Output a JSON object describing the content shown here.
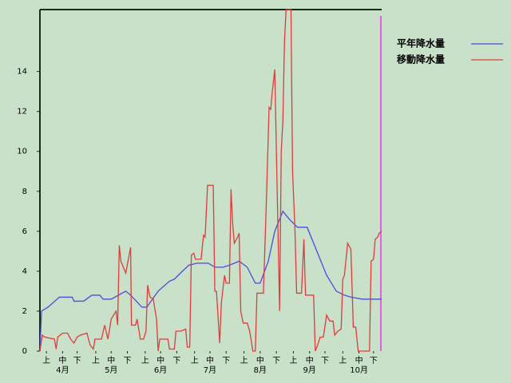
{
  "chart_data": {
    "type": "line",
    "xlim": [
      0,
      211
    ],
    "ylim": [
      0,
      17.1
    ],
    "yticks": [
      0,
      2,
      4,
      6,
      8,
      10,
      12,
      14
    ],
    "xticks": [
      {
        "value": 4,
        "label": "上"
      },
      {
        "value": 14,
        "label": "中"
      },
      {
        "value": 23,
        "label": "下"
      },
      {
        "value": 34.5,
        "label": "上"
      },
      {
        "value": 44,
        "label": "中"
      },
      {
        "value": 54,
        "label": "下"
      },
      {
        "value": 65,
        "label": "上"
      },
      {
        "value": 74.5,
        "label": "中"
      },
      {
        "value": 84.5,
        "label": "下"
      },
      {
        "value": 95.5,
        "label": "上"
      },
      {
        "value": 105,
        "label": "中"
      },
      {
        "value": 115,
        "label": "下"
      },
      {
        "value": 126,
        "label": "上"
      },
      {
        "value": 136,
        "label": "中"
      },
      {
        "value": 146,
        "label": "下"
      },
      {
        "value": 156.5,
        "label": "上"
      },
      {
        "value": 166.5,
        "label": "中"
      },
      {
        "value": 176,
        "label": "下"
      },
      {
        "value": 187,
        "label": "上"
      },
      {
        "value": 197,
        "label": "中"
      },
      {
        "value": 206,
        "label": "下"
      }
    ],
    "month_ticks": [
      {
        "value": 14,
        "label": "4月"
      },
      {
        "value": 44,
        "label": "5月"
      },
      {
        "value": 74.5,
        "label": "6月"
      },
      {
        "value": 105,
        "label": "7月"
      },
      {
        "value": 136,
        "label": "8月"
      },
      {
        "value": 166.5,
        "label": "9月"
      },
      {
        "value": 197,
        "label": "10月"
      }
    ],
    "grid": false,
    "series": [
      {
        "name": "平年降水量",
        "color": "#4b4bdc",
        "x": [
          0,
          1,
          5,
          12,
          20,
          21,
          27,
          32,
          37,
          39,
          44,
          53,
          56,
          63,
          66,
          73,
          80,
          83,
          88,
          92,
          97,
          104,
          108,
          113,
          117,
          123,
          128,
          133,
          136,
          141,
          145,
          150,
          154,
          159,
          165,
          171,
          177,
          183,
          188,
          192,
          199,
          211
        ],
        "values": [
          0,
          2.0,
          2.2,
          2.7,
          2.7,
          2.5,
          2.5,
          2.8,
          2.8,
          2.6,
          2.6,
          3.0,
          2.8,
          2.2,
          2.2,
          3.0,
          3.5,
          3.6,
          4.0,
          4.3,
          4.4,
          4.4,
          4.2,
          4.2,
          4.3,
          4.5,
          4.2,
          3.4,
          3.4,
          4.5,
          6.0,
          7.0,
          6.6,
          6.2,
          6.2,
          5.0,
          3.8,
          3.0,
          2.8,
          2.7,
          2.6,
          2.6
        ]
      },
      {
        "name": "移動降水量",
        "color": "#e03c3c",
        "x": [
          0,
          1.5,
          3,
          9,
          10,
          11,
          14,
          17,
          19,
          21,
          23,
          25,
          29,
          31,
          33,
          34,
          38,
          40,
          42,
          44,
          47,
          48,
          49,
          50,
          53,
          56,
          56.5,
          59,
          60,
          62,
          64,
          65.5,
          66.5,
          68,
          70,
          72,
          73,
          74,
          79,
          80,
          83,
          84,
          87,
          90,
          91,
          92.5,
          93.5,
          95,
          96,
          99.5,
          101,
          102,
          103.5,
          107,
          108,
          109,
          111,
          112,
          114,
          115,
          117,
          118,
          119,
          120,
          122,
          123,
          124,
          125.5,
          128,
          129.5,
          130.5,
          131.5,
          133,
          134,
          138,
          140,
          141.5,
          142.5,
          143.5,
          145,
          146.5,
          148,
          149,
          150,
          151,
          152,
          155,
          156,
          157.5,
          158.5,
          161.5,
          163,
          164,
          169,
          170,
          171.5,
          173,
          175,
          177,
          179,
          181,
          182,
          184,
          186,
          187,
          188,
          190,
          192,
          193.5,
          195,
          196.5,
          201,
          203.5,
          204.5,
          206,
          207,
          208.5,
          209.5,
          211
        ],
        "values": [
          0,
          0.8,
          0.7,
          0.6,
          0.1,
          0.7,
          0.9,
          0.9,
          0.6,
          0.4,
          0.7,
          0.8,
          0.9,
          0.3,
          0.1,
          0.6,
          0.6,
          1.3,
          0.6,
          1.6,
          2.0,
          1.3,
          5.3,
          4.5,
          3.9,
          5.2,
          1.3,
          1.3,
          1.6,
          0.6,
          0.6,
          1.0,
          3.3,
          2.7,
          2.6,
          1.6,
          0,
          0.6,
          0.6,
          0.1,
          0.1,
          1.0,
          1.0,
          1.1,
          0.2,
          0.2,
          4.8,
          4.9,
          4.6,
          4.6,
          5.8,
          5.7,
          8.3,
          8.3,
          3.0,
          3.0,
          0.4,
          2.4,
          3.8,
          3.4,
          3.4,
          8.1,
          6.4,
          5.4,
          5.7,
          5.9,
          2.0,
          1.4,
          1.4,
          1.0,
          0.5,
          0,
          0,
          2.9,
          2.9,
          8.0,
          12.2,
          12.1,
          13.0,
          14.1,
          8.0,
          2.0,
          10.0,
          11.5,
          15.5,
          17.1,
          17.1,
          9.0,
          6.0,
          2.9,
          2.9,
          5.6,
          2.8,
          2.8,
          0,
          0.3,
          0.7,
          0.7,
          1.8,
          1.5,
          1.5,
          0.8,
          1.0,
          1.1,
          3.6,
          3.8,
          5.4,
          5.1,
          1.2,
          1.2,
          0,
          0,
          0,
          4.5,
          4.6,
          5.6,
          5.7,
          5.9,
          6.0
        ]
      }
    ]
  }
}
